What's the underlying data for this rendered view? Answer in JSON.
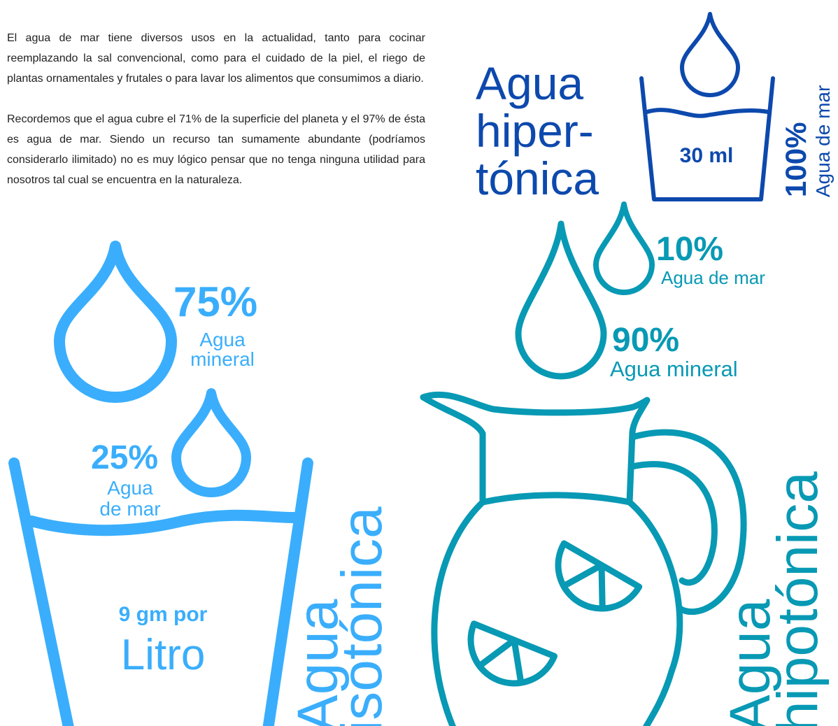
{
  "intro": {
    "paragraphs": [
      "El agua de mar tiene diversos usos en la actualidad, tanto para cocinar reemplazando la sal convencional, como para el cuidado de la piel, el riego de plantas ornamentales y frutales o para lavar los alimentos que consumimos a diario.",
      "Recordemos que el agua cubre el 71% de la superficie del planeta y el 97% de ésta es agua de mar. Siendo un recurso tan sumamente abundante (podríamos considerarlo ilimitado) no es muy lógico pensar que no tenga ninguna utilidad para nosotros tal cual se encuentra en la naturaleza."
    ]
  },
  "hypertonic": {
    "title_lines": [
      "Agua",
      "hiper-",
      "tónica"
    ],
    "volume": "30 ml",
    "percent": "100%",
    "label": "Agua de mar"
  },
  "isotonic": {
    "mineral_percent": "75%",
    "mineral_label_lines": [
      "Agua",
      "mineral"
    ],
    "sea_percent": "25%",
    "sea_label_lines": [
      "Agua",
      "de mar"
    ],
    "amount_lines": [
      "9 gm por",
      "Litro"
    ],
    "title_lines": [
      "Agua",
      "isotónica"
    ]
  },
  "hypotonic": {
    "sea_percent": "10%",
    "sea_label": "Agua de mar",
    "mineral_percent": "90%",
    "mineral_label": "Agua mineral",
    "title_lines": [
      "Agua",
      "hipotónica"
    ]
  }
}
